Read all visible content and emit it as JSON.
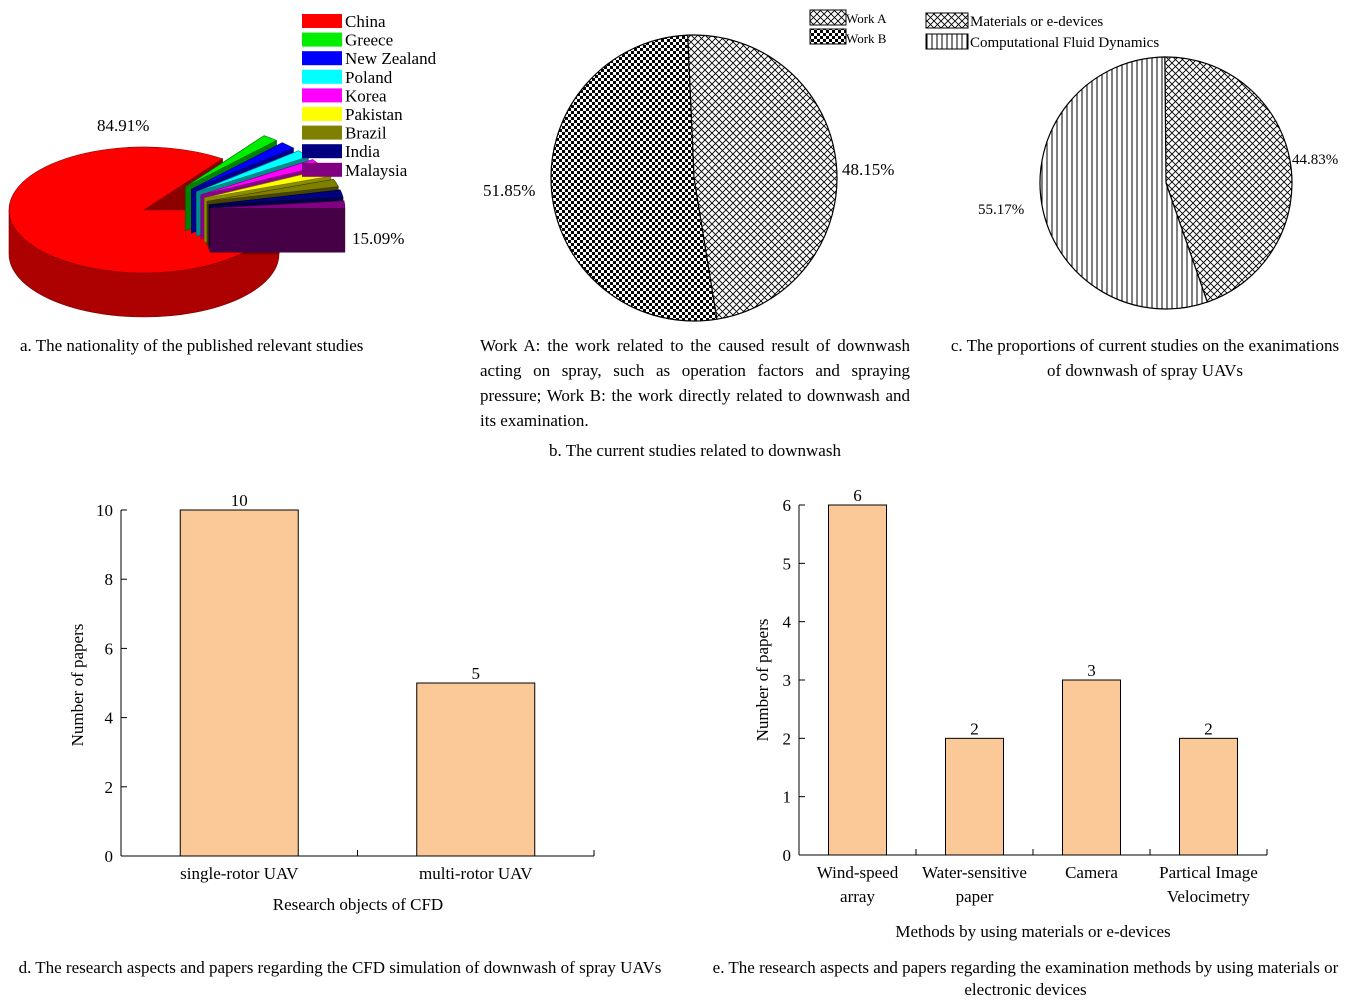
{
  "panel_a": {
    "caption": "a. The nationality of the published relevant studies",
    "china_label": "84.91%",
    "others_label": "15.09%",
    "legend": [
      {
        "name": "China",
        "color": "#ff0000"
      },
      {
        "name": "Greece",
        "color": "#00ee00"
      },
      {
        "name": "New Zealand",
        "color": "#0000ff"
      },
      {
        "name": "Poland",
        "color": "#00ffff"
      },
      {
        "name": "Korea",
        "color": "#ff00ff"
      },
      {
        "name": "Pakistan",
        "color": "#ffff00"
      },
      {
        "name": "Brazil",
        "color": "#808000"
      },
      {
        "name": "India",
        "color": "#000080"
      },
      {
        "name": "Malaysia",
        "color": "#800080"
      }
    ]
  },
  "panel_b": {
    "legend_a": "Work A",
    "legend_b": "Work B",
    "label_a": "48.15%",
    "label_b": "51.85%",
    "note": "Work A: the work related to the caused result of downwash acting on spray, such as operation factors and spraying pressure; Work B: the work directly related to downwash and its examination.",
    "caption": "b. The current studies related to downwash"
  },
  "panel_c": {
    "legend_materials": "Materials or e-devices",
    "legend_cfd": "Computational Fluid Dynamics",
    "label_materials": "44.83%",
    "label_cfd": "55.17%",
    "caption": "c. The proportions of current studies on the exanimations of downwash of spray UAVs"
  },
  "panel_d": {
    "ylabel": "Number of papers",
    "xlabel": "Research objects of CFD",
    "caption": "d. The research aspects and papers regarding the CFD simulation of downwash of spray UAVs"
  },
  "panel_e": {
    "ylabel": "Number of papers",
    "xlabel": "Methods by using materials or e-devices",
    "caption": "e. The research aspects and papers regarding the examination methods by using materials or electronic devices"
  },
  "bar_color": "#fbc898",
  "chart_data": [
    {
      "type": "pie",
      "categories": [
        "China",
        "Greece",
        "New Zealand",
        "Poland",
        "Korea",
        "Pakistan",
        "Brazil",
        "India",
        "Malaysia"
      ],
      "values": [
        84.91,
        1.89,
        1.89,
        1.89,
        1.89,
        1.89,
        1.89,
        1.89,
        1.89
      ],
      "annotations": [
        "84.91%",
        "15.09%"
      ],
      "legend_position": "top-right",
      "style": "3d-exploded"
    },
    {
      "type": "pie",
      "categories": [
        "Work A",
        "Work B"
      ],
      "values": [
        48.15,
        51.85
      ],
      "legend_position": "top-right"
    },
    {
      "type": "pie",
      "categories": [
        "Materials or e-devices",
        "Computational Fluid Dynamics"
      ],
      "values": [
        44.83,
        55.17
      ],
      "legend_position": "top"
    },
    {
      "type": "bar",
      "categories": [
        "single-rotor UAV",
        "multi-rotor UAV"
      ],
      "values": [
        10,
        5
      ],
      "xlabel": "Research objects of CFD",
      "ylabel": "Number of papers",
      "ylim": [
        0,
        10
      ],
      "yticks": [
        0,
        2,
        4,
        6,
        8,
        10
      ],
      "grid": false
    },
    {
      "type": "bar",
      "categories": [
        [
          "Wind-speed",
          "array"
        ],
        [
          "Water-sensitive",
          "paper"
        ],
        [
          "Camera"
        ],
        [
          "Partical Image",
          "Velocimetry"
        ]
      ],
      "values": [
        6,
        2,
        3,
        2
      ],
      "xlabel": "Methods by using materials or e-devices",
      "ylabel": "Number of papers",
      "ylim": [
        0,
        6
      ],
      "yticks": [
        0,
        1,
        2,
        3,
        4,
        5,
        6
      ],
      "grid": false
    }
  ]
}
